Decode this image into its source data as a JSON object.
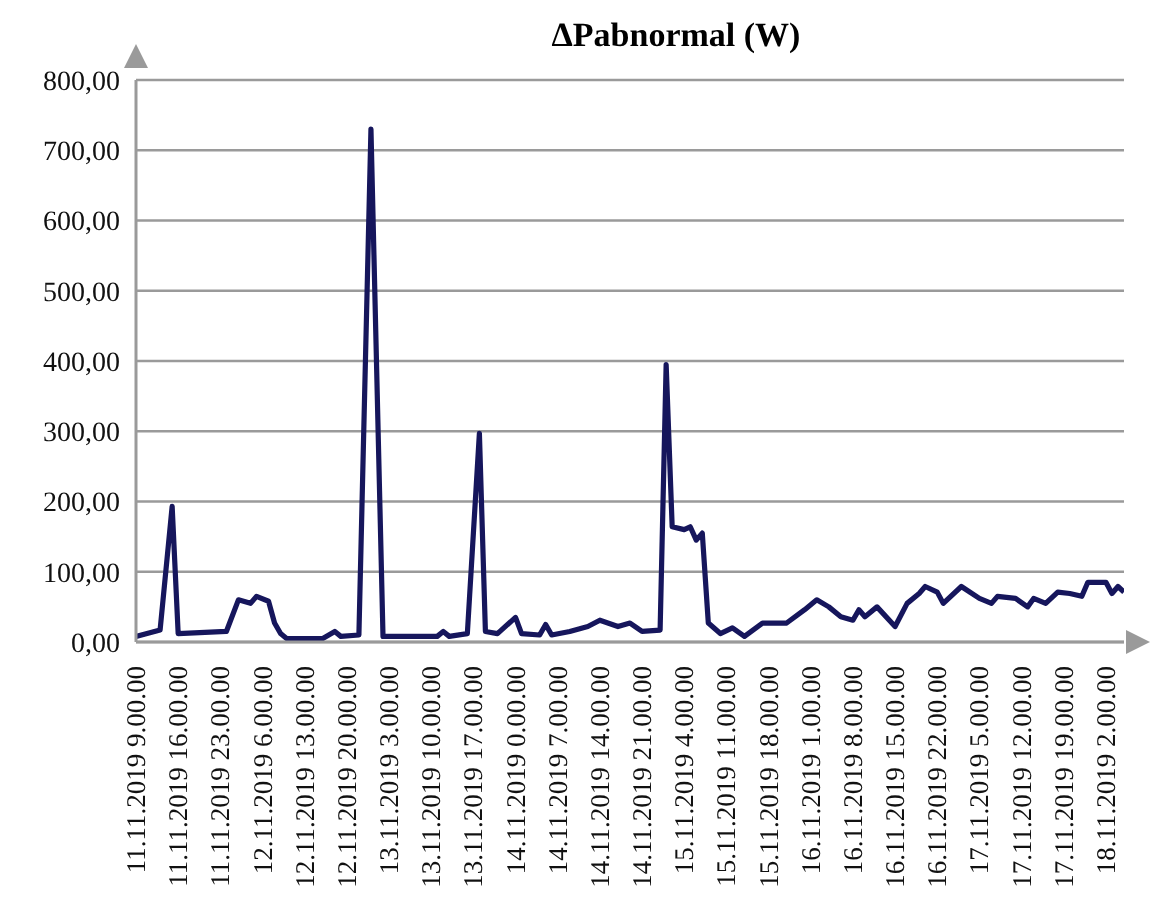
{
  "chart_data": {
    "type": "line",
    "title": "ΔPabnormal (W)",
    "color": "#16165c",
    "grid": "y",
    "x": [
      "2019-11-11T09:00",
      "2019-11-11T13:00",
      "2019-11-11T15:00",
      "2019-11-11T16:00",
      "2019-11-12T00:00",
      "2019-11-12T02:00",
      "2019-11-12T04:00",
      "2019-11-12T05:00",
      "2019-11-12T07:00",
      "2019-11-12T08:00",
      "2019-11-12T09:00",
      "2019-11-12T10:00",
      "2019-11-12T16:00",
      "2019-11-12T18:00",
      "2019-11-12T19:00",
      "2019-11-12T22:00",
      "2019-11-13T00:00",
      "2019-11-13T02:00",
      "2019-11-13T11:00",
      "2019-11-13T12:00",
      "2019-11-13T13:00",
      "2019-11-13T16:00",
      "2019-11-13T18:00",
      "2019-11-13T19:00",
      "2019-11-13T21:00",
      "2019-11-14T00:00",
      "2019-11-14T01:00",
      "2019-11-14T04:00",
      "2019-11-14T05:00",
      "2019-11-14T06:00",
      "2019-11-14T09:00",
      "2019-11-14T12:00",
      "2019-11-14T14:00",
      "2019-11-14T17:00",
      "2019-11-14T19:00",
      "2019-11-14T21:00",
      "2019-11-15T00:00",
      "2019-11-15T01:00",
      "2019-11-15T02:00",
      "2019-11-15T04:00",
      "2019-11-15T05:00",
      "2019-11-15T06:00",
      "2019-11-15T07:00",
      "2019-11-15T08:00",
      "2019-11-15T10:00",
      "2019-11-15T12:00",
      "2019-11-15T14:00",
      "2019-11-15T17:00",
      "2019-11-15T21:00",
      "2019-11-16T00:00",
      "2019-11-16T02:00",
      "2019-11-16T04:00",
      "2019-11-16T06:00",
      "2019-11-16T08:00",
      "2019-11-16T09:00",
      "2019-11-16T10:00",
      "2019-11-16T12:00",
      "2019-11-16T15:00",
      "2019-11-16T17:00",
      "2019-11-16T19:00",
      "2019-11-16T20:00",
      "2019-11-16T22:00",
      "2019-11-16T23:00",
      "2019-11-17T02:00",
      "2019-11-17T05:00",
      "2019-11-17T07:00",
      "2019-11-17T08:00",
      "2019-11-17T11:00",
      "2019-11-17T13:00",
      "2019-11-17T14:00",
      "2019-11-17T16:00",
      "2019-11-17T18:00",
      "2019-11-17T20:00",
      "2019-11-17T22:00",
      "2019-11-17T23:00",
      "2019-11-18T02:00",
      "2019-11-18T03:00",
      "2019-11-18T04:00",
      "2019-11-18T05:00"
    ],
    "values": [
      8,
      17,
      193,
      12,
      15,
      60,
      55,
      65,
      58,
      27,
      12,
      5,
      5,
      15,
      8,
      10,
      730,
      8,
      8,
      15,
      8,
      12,
      297,
      15,
      12,
      35,
      12,
      10,
      25,
      10,
      15,
      22,
      31,
      22,
      27,
      15,
      17,
      395,
      164,
      160,
      164,
      145,
      155,
      27,
      12,
      20,
      8,
      27,
      27,
      46,
      60,
      50,
      36,
      31,
      46,
      36,
      50,
      22,
      55,
      69,
      79,
      71,
      55,
      79,
      62,
      55,
      65,
      62,
      50,
      62,
      55,
      71,
      69,
      65,
      85,
      85,
      69,
      79,
      71
    ],
    "xlim": [
      "2019-11-11T09:00",
      "2019-11-18T05:00"
    ],
    "xticks": [
      {
        "value": "2019-11-11T09:00",
        "label": "11.11.2019 9.00.00"
      },
      {
        "value": "2019-11-11T16:00",
        "label": "11.11.2019 16.00.00"
      },
      {
        "value": "2019-11-11T23:00",
        "label": "11.11.2019 23.00.00"
      },
      {
        "value": "2019-11-12T06:00",
        "label": "12.11.2019 6.00.00"
      },
      {
        "value": "2019-11-12T13:00",
        "label": "12.11.2019 13.00.00"
      },
      {
        "value": "2019-11-12T20:00",
        "label": "12.11.2019 20.00.00"
      },
      {
        "value": "2019-11-13T03:00",
        "label": "13.11.2019 3.00.00"
      },
      {
        "value": "2019-11-13T10:00",
        "label": "13.11.2019 10.00.00"
      },
      {
        "value": "2019-11-13T17:00",
        "label": "13.11.2019 17.00.00"
      },
      {
        "value": "2019-11-14T00:00",
        "label": "14.11.2019 0.00.00"
      },
      {
        "value": "2019-11-14T07:00",
        "label": "14.11.2019 7.00.00"
      },
      {
        "value": "2019-11-14T14:00",
        "label": "14.11.2019 14.00.00"
      },
      {
        "value": "2019-11-14T21:00",
        "label": "14.11.2019 21.00.00"
      },
      {
        "value": "2019-11-15T04:00",
        "label": "15.11.2019 4.00.00"
      },
      {
        "value": "2019-11-15T11:00",
        "label": "15.11.2019 11.00.00"
      },
      {
        "value": "2019-11-15T18:00",
        "label": "15.11.2019 18.00.00"
      },
      {
        "value": "2019-11-16T01:00",
        "label": "16.11.2019 1.00.00"
      },
      {
        "value": "2019-11-16T08:00",
        "label": "16.11.2019 8.00.00"
      },
      {
        "value": "2019-11-16T15:00",
        "label": "16.11.2019 15.00.00"
      },
      {
        "value": "2019-11-16T22:00",
        "label": "16.11.2019 22.00.00"
      },
      {
        "value": "2019-11-17T05:00",
        "label": "17.11.2019 5.00.00"
      },
      {
        "value": "2019-11-17T12:00",
        "label": "17.11.2019 12.00.00"
      },
      {
        "value": "2019-11-17T19:00",
        "label": "17.11.2019 19.00.00"
      },
      {
        "value": "2019-11-18T02:00",
        "label": "18.11.2019 2.00.00"
      }
    ],
    "ylim": [
      0,
      800
    ],
    "yticks": [
      {
        "value": 0,
        "label": "0,00"
      },
      {
        "value": 100,
        "label": "100,00"
      },
      {
        "value": 200,
        "label": "200,00"
      },
      {
        "value": 300,
        "label": "300,00"
      },
      {
        "value": 400,
        "label": "400,00"
      },
      {
        "value": 500,
        "label": "500,00"
      },
      {
        "value": 600,
        "label": "600,00"
      },
      {
        "value": 700,
        "label": "700,00"
      },
      {
        "value": 800,
        "label": "800,00"
      }
    ]
  }
}
